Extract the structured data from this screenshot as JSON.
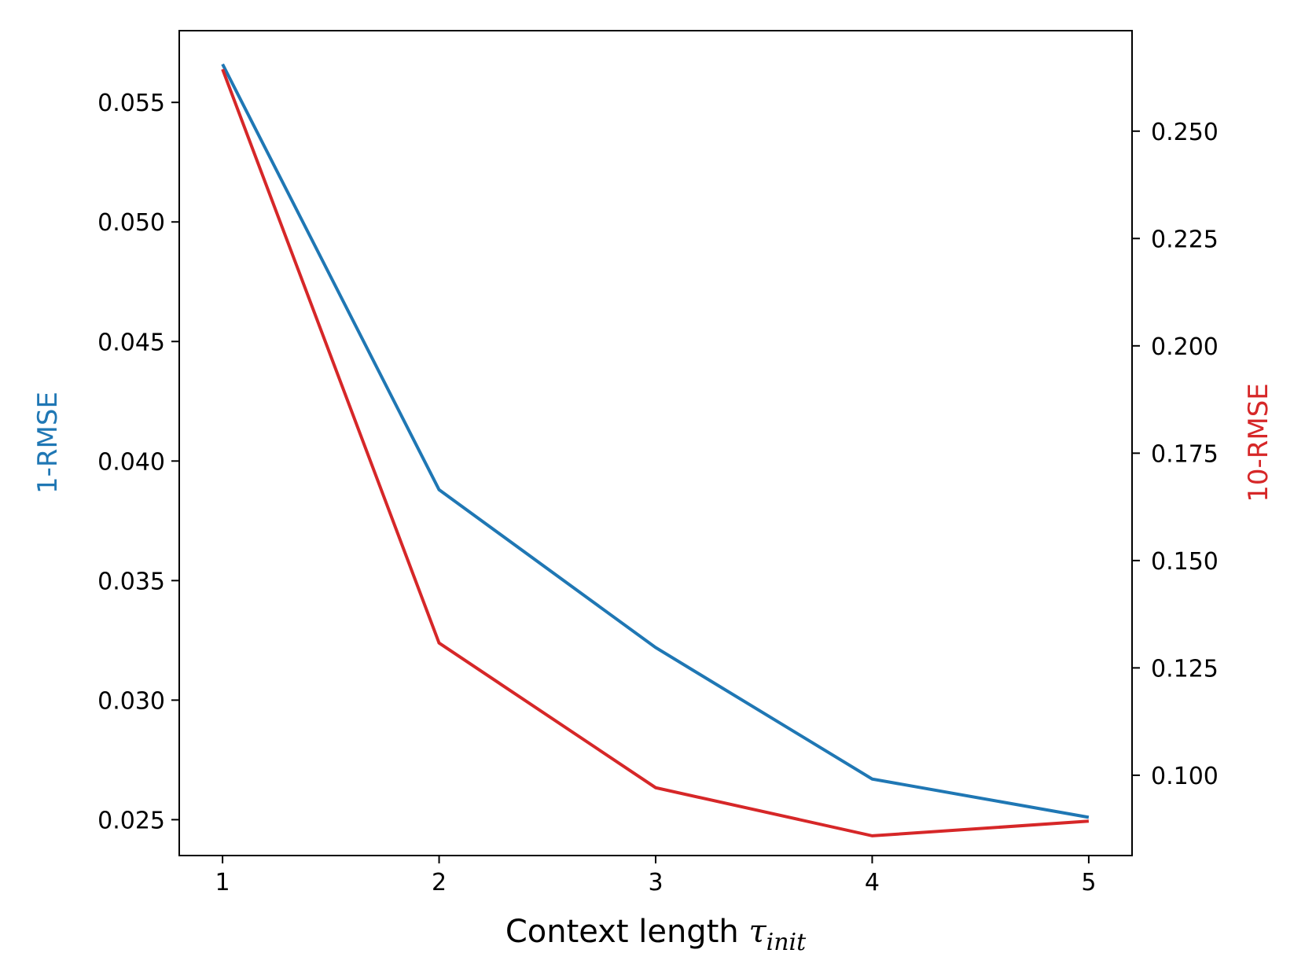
{
  "colors": {
    "left_series": "#1f77b4",
    "right_series": "#d62728",
    "axis": "#000000",
    "background": "#ffffff"
  },
  "chart_data": {
    "type": "line",
    "title": "",
    "grid": false,
    "x": [
      1,
      2,
      3,
      4,
      5
    ],
    "xlim": [
      0.8,
      5.2
    ],
    "xticks": [
      1,
      2,
      3,
      4,
      5
    ],
    "xticklabels": [
      "1",
      "2",
      "3",
      "4",
      "5"
    ],
    "xlabel": {
      "text": "Context length ",
      "symbol": "τ",
      "subscript": "init"
    },
    "y_left": {
      "label": "1-RMSE",
      "lim": [
        0.0235,
        0.058
      ],
      "ticks": [
        0.025,
        0.03,
        0.035,
        0.04,
        0.045,
        0.05,
        0.055
      ],
      "ticklabels": [
        "0.025",
        "0.030",
        "0.035",
        "0.040",
        "0.045",
        "0.050",
        "0.055"
      ]
    },
    "y_right": {
      "label": "10-RMSE",
      "lim": [
        0.0813,
        0.2734
      ],
      "ticks": [
        0.1,
        0.125,
        0.15,
        0.175,
        0.2,
        0.225,
        0.25
      ],
      "ticklabels": [
        "0.100",
        "0.125",
        "0.150",
        "0.175",
        "0.200",
        "0.225",
        "0.250"
      ]
    },
    "series": [
      {
        "axis": "left",
        "values": [
          0.0566,
          0.0388,
          0.0322,
          0.0267,
          0.0251
        ]
      },
      {
        "axis": "right",
        "values": [
          0.2644,
          0.1308,
          0.0971,
          0.0859,
          0.0893
        ]
      }
    ]
  }
}
